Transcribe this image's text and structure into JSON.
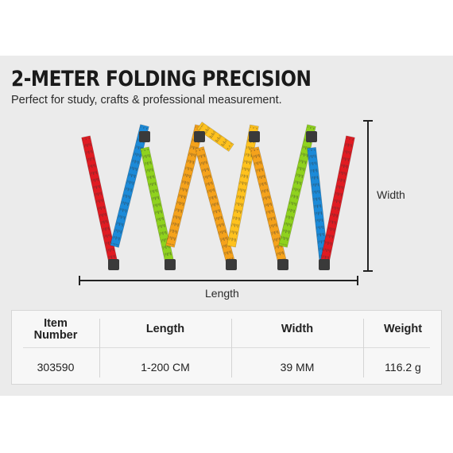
{
  "heading": {
    "title": "2-METER FOLDING PRECISION",
    "subtitle": "Perfect for study, crafts & professional measurement."
  },
  "dimensions": {
    "width_label": "Width",
    "length_label": "Length"
  },
  "ruler": {
    "segment_colors": [
      "#e01b22",
      "#1c8ad8",
      "#8fd21e",
      "#f5a21b",
      "#f5a21b",
      "#ffc21e",
      "#ffc21e",
      "#f5a21b",
      "#8fd21e",
      "#1c8ad8",
      "#e01b22"
    ]
  },
  "spec_table": {
    "headers": [
      "Item\nNumber",
      "Length",
      "Width",
      "Weight"
    ],
    "values": [
      "303590",
      "1-200 CM",
      "39 MM",
      "116.2 g"
    ]
  }
}
